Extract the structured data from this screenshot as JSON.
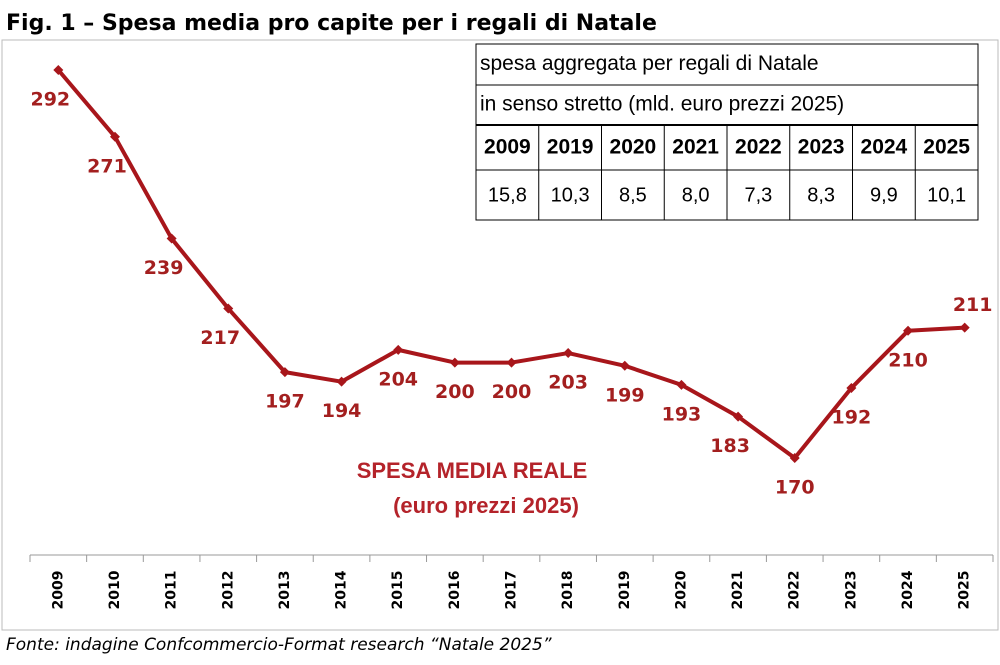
{
  "chart_data": {
    "type": "line",
    "title": "Fig. 1 – Spesa media pro capite per i regali di Natale",
    "categories": [
      "2009",
      "2010",
      "2011",
      "2012",
      "2013",
      "2014",
      "2015",
      "2016",
      "2017",
      "2018",
      "2019",
      "2020",
      "2021",
      "2022",
      "2023",
      "2024",
      "2025"
    ],
    "series": [
      {
        "name": "SPESA MEDIA REALE",
        "color": "#a8161b",
        "values": [
          292,
          271,
          239,
          217,
          197,
          194,
          204,
          200,
          200,
          203,
          199,
          193,
          183,
          170,
          192,
          210,
          211
        ]
      }
    ],
    "annotation": "(euro prezzi 2025)",
    "table": {
      "title_lines": [
        "spesa aggregata per regali di Natale",
        "in senso stretto (mld. euro prezzi 2025)"
      ],
      "columns": [
        "2009",
        "2019",
        "2020",
        "2021",
        "2022",
        "2023",
        "2024",
        "2025"
      ],
      "values": [
        "15,8",
        "10,3",
        "8,5",
        "8,0",
        "7,3",
        "8,3",
        "9,9",
        "10,1"
      ]
    },
    "source": "Fonte: indagine Confcommercio-Format research “Natale 2025”"
  }
}
